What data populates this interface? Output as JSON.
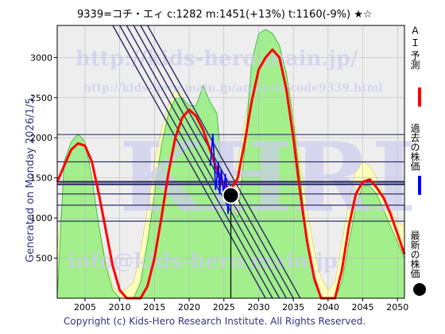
{
  "header": {
    "title": "9339=コチ・エィ    c:1282  m:1451(+13%)  t:1160(-9%)  ★☆"
  },
  "footer": {
    "copyright": "Copyright (c) Kids-Hero Research Institute. All Rights Reserved."
  },
  "left_label": "Generated on Monday 2026/1/5.",
  "watermarks": {
    "url1": "http://kids-hero.main.jp/",
    "url2": "http://kids-hero.main.jp/analysis/code9339.html",
    "email": "info@kids-hero.main.jp",
    "big": "KHRI"
  },
  "legend": [
    {
      "text": "Ａ Ｉ 予測",
      "color": "#ff0000",
      "mark": "line"
    },
    {
      "text": "過去の株価",
      "color": "#0000ff",
      "mark": "line"
    },
    {
      "text": "最新の株価",
      "color": "#000000",
      "mark": "dot"
    }
  ],
  "colors": {
    "green_fill": "#99ee88",
    "green_line": "#22aa22",
    "yellow_fill": "#ffffbb",
    "ai_line": "#ff0000",
    "past_line": "#0000ff",
    "hline": "#333366",
    "diag": "#333366",
    "grid": "#bbbbbb",
    "plot_bg": "#eeeeee",
    "wm": "#ccccee"
  },
  "chart_data": {
    "type": "line",
    "xlim": [
      2001,
      2051
    ],
    "ylim": [
      0,
      3400
    ],
    "x_ticks": [
      2005,
      2010,
      2015,
      2020,
      2025,
      2030,
      2035,
      2040,
      2045,
      2050
    ],
    "y_ticks": [
      500,
      1000,
      1500,
      2000,
      2500,
      3000
    ],
    "grid": true,
    "current": {
      "x": 2026.0,
      "y": 1282
    },
    "horizontal_levels": [
      2040,
      1700,
      1451,
      1420,
      1300,
      1160,
      960
    ],
    "ai_forecast": [
      [
        2001,
        1450
      ],
      [
        2002,
        1650
      ],
      [
        2003,
        1850
      ],
      [
        2004,
        1930
      ],
      [
        2005,
        1900
      ],
      [
        2006,
        1700
      ],
      [
        2007,
        1300
      ],
      [
        2008,
        850
      ],
      [
        2009,
        400
      ],
      [
        2010,
        100
      ],
      [
        2011,
        0
      ],
      [
        2013,
        0
      ],
      [
        2014,
        150
      ],
      [
        2015,
        500
      ],
      [
        2016,
        1000
      ],
      [
        2017,
        1550
      ],
      [
        2018,
        2000
      ],
      [
        2019,
        2250
      ],
      [
        2020,
        2350
      ],
      [
        2021,
        2270
      ],
      [
        2022,
        2100
      ],
      [
        2023,
        1850
      ],
      [
        2024,
        1600
      ],
      [
        2025,
        1420
      ],
      [
        2026,
        1350
      ],
      [
        2027,
        1500
      ],
      [
        2028,
        1950
      ],
      [
        2029,
        2450
      ],
      [
        2030,
        2850
      ],
      [
        2031,
        3000
      ],
      [
        2032,
        3100
      ],
      [
        2033,
        3000
      ],
      [
        2034,
        2600
      ],
      [
        2035,
        2000
      ],
      [
        2036,
        1300
      ],
      [
        2037,
        700
      ],
      [
        2038,
        250
      ],
      [
        2039,
        0
      ],
      [
        2041,
        0
      ],
      [
        2042,
        350
      ],
      [
        2043,
        900
      ],
      [
        2044,
        1300
      ],
      [
        2045,
        1450
      ],
      [
        2046,
        1480
      ],
      [
        2047,
        1380
      ],
      [
        2048,
        1250
      ],
      [
        2049,
        1050
      ],
      [
        2050,
        800
      ],
      [
        2051,
        550
      ]
    ],
    "green_band": [
      [
        2001,
        0
      ],
      [
        2002,
        1700
      ],
      [
        2003,
        1950
      ],
      [
        2004,
        2050
      ],
      [
        2005,
        1950
      ],
      [
        2006,
        1500
      ],
      [
        2007,
        900
      ],
      [
        2008,
        400
      ],
      [
        2009,
        100
      ],
      [
        2010,
        0
      ],
      [
        2012,
        0
      ],
      [
        2013,
        200
      ],
      [
        2014,
        700
      ],
      [
        2015,
        1300
      ],
      [
        2016,
        1900
      ],
      [
        2017,
        2300
      ],
      [
        2018,
        2500
      ],
      [
        2019,
        2500
      ],
      [
        2020,
        2400
      ],
      [
        2021,
        2400
      ],
      [
        2022,
        2650
      ],
      [
        2023,
        2450
      ],
      [
        2024,
        2300
      ],
      [
        2025,
        1300
      ],
      [
        2026,
        1200
      ],
      [
        2027,
        1000
      ],
      [
        2028,
        1850
      ],
      [
        2029,
        2950
      ],
      [
        2030,
        3300
      ],
      [
        2031,
        3350
      ],
      [
        2032,
        3300
      ],
      [
        2033,
        3150
      ],
      [
        2034,
        2800
      ],
      [
        2035,
        2200
      ],
      [
        2036,
        1500
      ],
      [
        2037,
        700
      ],
      [
        2038,
        200
      ],
      [
        2039,
        0
      ],
      [
        2041,
        0
      ],
      [
        2042,
        200
      ],
      [
        2043,
        700
      ],
      [
        2044,
        1150
      ],
      [
        2045,
        1400
      ],
      [
        2046,
        1400
      ],
      [
        2047,
        1300
      ],
      [
        2048,
        1100
      ],
      [
        2049,
        900
      ],
      [
        2050,
        700
      ],
      [
        2051,
        500
      ]
    ],
    "yellow_band": [
      [
        2001,
        600
      ],
      [
        2002,
        1400
      ],
      [
        2003,
        1600
      ],
      [
        2004,
        1700
      ],
      [
        2005,
        1650
      ],
      [
        2006,
        1400
      ],
      [
        2007,
        900
      ],
      [
        2008,
        450
      ],
      [
        2009,
        150
      ],
      [
        2010,
        50
      ],
      [
        2012,
        200
      ],
      [
        2013,
        600
      ],
      [
        2014,
        1100
      ],
      [
        2015,
        1700
      ],
      [
        2016,
        2100
      ],
      [
        2017,
        2400
      ],
      [
        2018,
        2600
      ],
      [
        2019,
        2550
      ],
      [
        2020,
        2300
      ],
      [
        2021,
        2050
      ],
      [
        2022,
        1900
      ],
      [
        2023,
        1700
      ],
      [
        2024,
        1500
      ],
      [
        2025,
        1400
      ],
      [
        2026,
        1400
      ],
      [
        2027,
        1700
      ],
      [
        2028,
        2200
      ],
      [
        2029,
        2700
      ],
      [
        2030,
        3000
      ],
      [
        2031,
        3150
      ],
      [
        2032,
        3200
      ],
      [
        2033,
        3100
      ],
      [
        2034,
        2800
      ],
      [
        2035,
        2300
      ],
      [
        2036,
        1700
      ],
      [
        2037,
        1100
      ],
      [
        2038,
        600
      ],
      [
        2039,
        250
      ],
      [
        2040,
        100
      ],
      [
        2041,
        200
      ],
      [
        2042,
        700
      ],
      [
        2043,
        1200
      ],
      [
        2044,
        1600
      ],
      [
        2045,
        1700
      ],
      [
        2046,
        1650
      ],
      [
        2047,
        1500
      ],
      [
        2048,
        1300
      ],
      [
        2049,
        1100
      ],
      [
        2050,
        950
      ],
      [
        2051,
        900
      ]
    ],
    "past_price": [
      [
        2023.0,
        1650
      ],
      [
        2023.2,
        1800
      ],
      [
        2023.4,
        2050
      ],
      [
        2023.6,
        1750
      ],
      [
        2023.8,
        1350
      ],
      [
        2024.0,
        1500
      ],
      [
        2024.2,
        1700
      ],
      [
        2024.4,
        1300
      ],
      [
        2024.6,
        1600
      ],
      [
        2024.8,
        1450
      ],
      [
        2025.0,
        1250
      ],
      [
        2025.2,
        1550
      ],
      [
        2025.4,
        1350
      ],
      [
        2025.6,
        1050
      ],
      [
        2025.8,
        1250
      ],
      [
        2026.0,
        1282
      ]
    ],
    "diagonal_lines": [
      [
        [
          2011,
          3400
        ],
        [
          2033,
          0
        ]
      ],
      [
        [
          2012,
          3400
        ],
        [
          2034,
          0
        ]
      ],
      [
        [
          2013,
          3400
        ],
        [
          2035,
          0
        ]
      ],
      [
        [
          2014,
          3400
        ],
        [
          2036,
          0
        ]
      ],
      [
        [
          2009,
          3400
        ],
        [
          2031,
          0
        ]
      ],
      [
        [
          2010,
          3400
        ],
        [
          2032,
          0
        ]
      ]
    ]
  }
}
